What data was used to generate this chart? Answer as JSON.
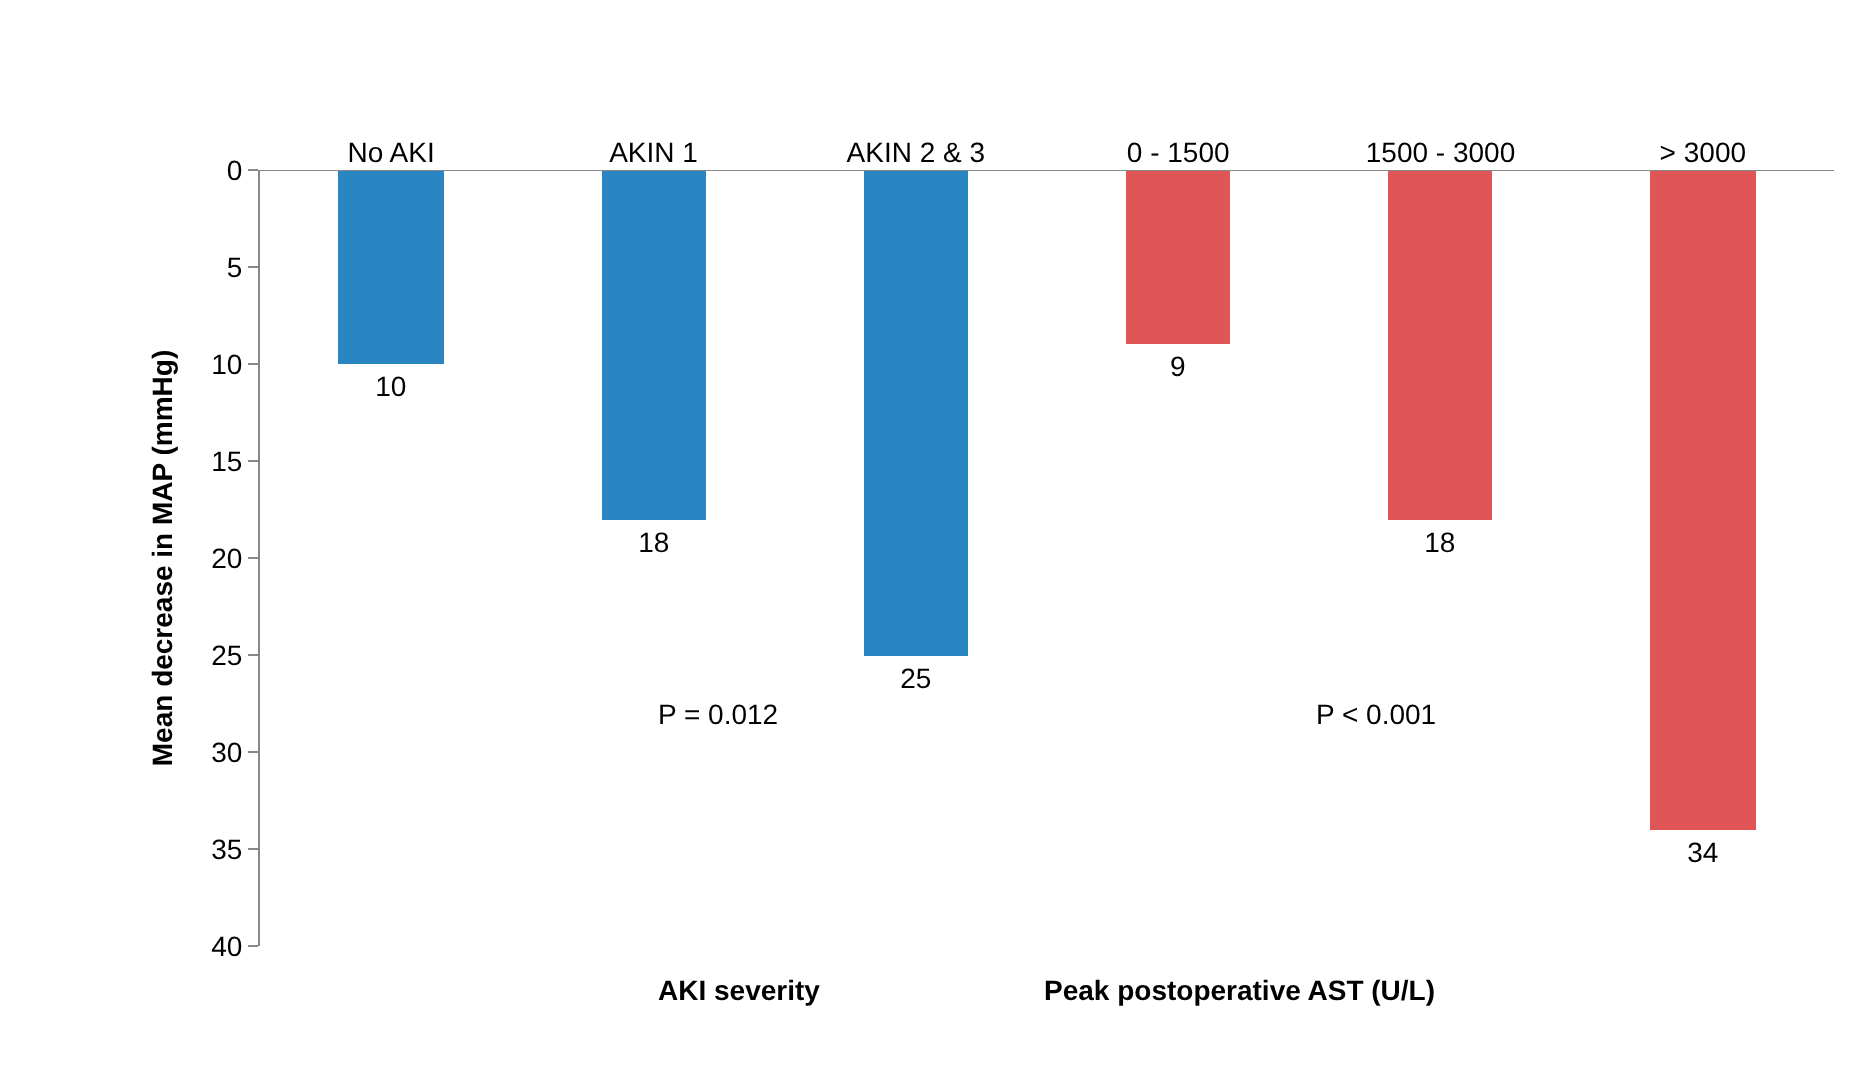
{
  "chart_data": {
    "type": "bar",
    "ylabel": "Mean decrease in MAP (mmHg)",
    "categories": [
      "No AKI",
      "AKIN 1",
      "AKIN 2 & 3",
      "0 - 1500",
      "1500 - 3000",
      "> 3000"
    ],
    "values": [
      10,
      18,
      25,
      9,
      18,
      34
    ],
    "colors": [
      "#2a85c3",
      "#2a85c3",
      "#2a85c3",
      "#e05555",
      "#e05555",
      "#e05555"
    ],
    "ylim": [
      40,
      0
    ],
    "yticks": [
      0,
      5,
      10,
      15,
      20,
      25,
      30,
      35,
      40
    ],
    "grid": false,
    "data_labels": true,
    "annotations": [
      "P = 0.012",
      "P < 0.001",
      "AKI severity",
      "Peak postoperative AST (U/L)"
    ]
  }
}
